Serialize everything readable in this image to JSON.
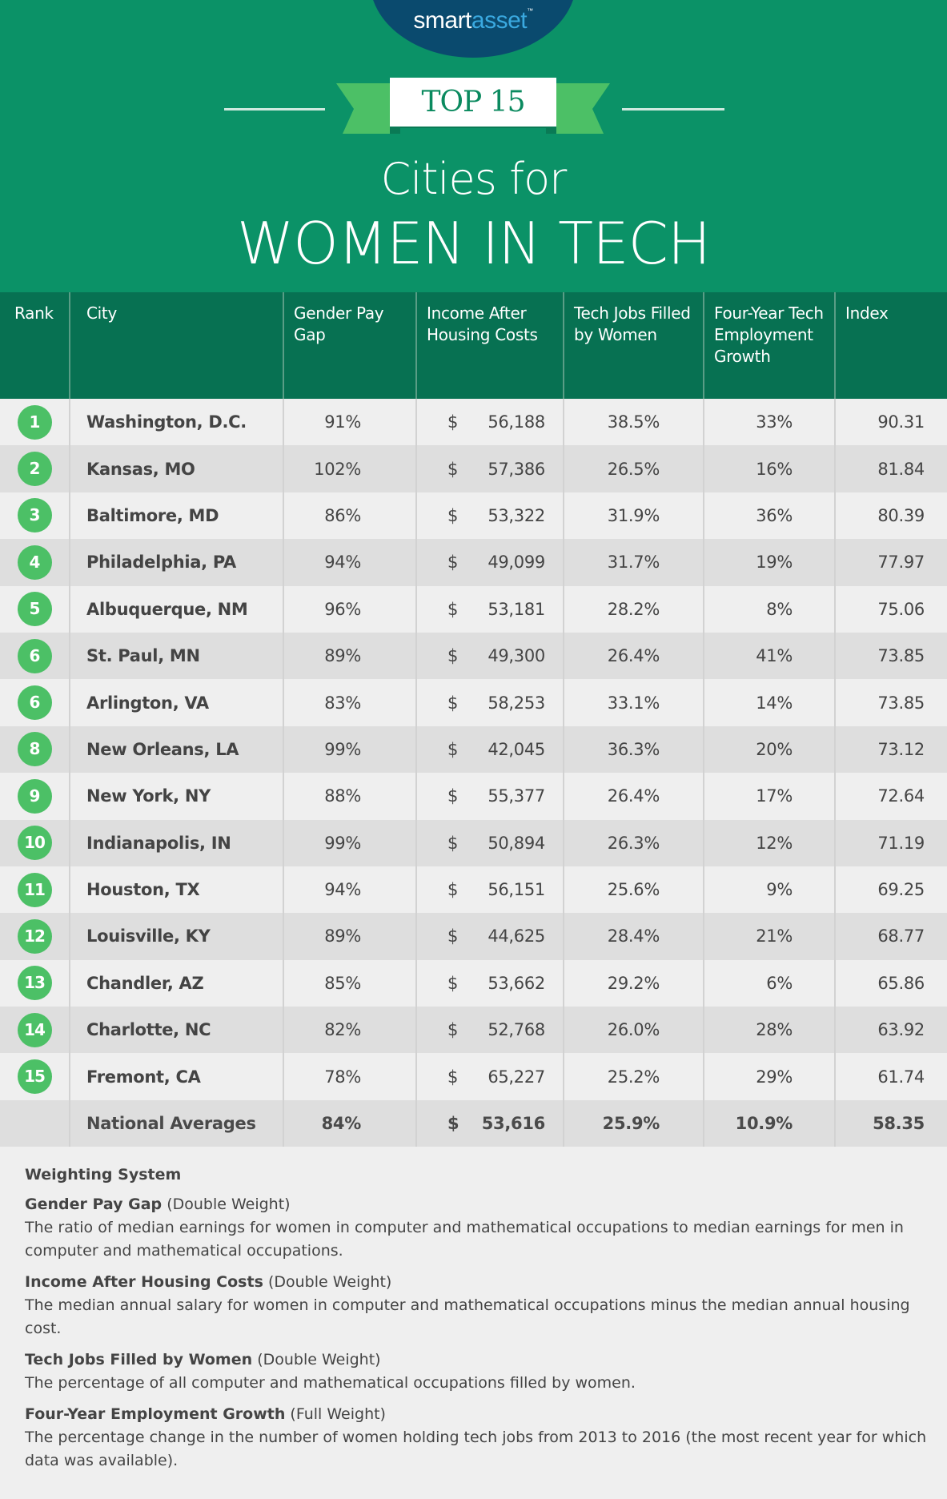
{
  "brand": {
    "part1": "smart",
    "part2": "asset",
    "tm": "™"
  },
  "badge_label": "TOP 15",
  "title_line1": "Cities for",
  "title_line2": "WOMEN IN TECH",
  "colors": {
    "banner": "#0b9267",
    "header": "#077152",
    "badge": "#4cc066",
    "logo": "#0a4a6e",
    "ribbon": "#4cc066"
  },
  "table": {
    "headers": [
      "Rank",
      "City",
      "Gender Pay Gap",
      "Income After Housing Costs",
      "Tech Jobs Filled by Women",
      "Four-Year Tech Employment Growth",
      "Index"
    ],
    "rows": [
      {
        "rank": "1",
        "city": "Washington, D.C.",
        "pay_gap": "91%",
        "income": "56,188",
        "tech_jobs": "38.5%",
        "growth": "33%",
        "index": "90.31"
      },
      {
        "rank": "2",
        "city": "Kansas, MO",
        "pay_gap": "102%",
        "income": "57,386",
        "tech_jobs": "26.5%",
        "growth": "16%",
        "index": "81.84"
      },
      {
        "rank": "3",
        "city": "Baltimore, MD",
        "pay_gap": "86%",
        "income": "53,322",
        "tech_jobs": "31.9%",
        "growth": "36%",
        "index": "80.39"
      },
      {
        "rank": "4",
        "city": "Philadelphia, PA",
        "pay_gap": "94%",
        "income": "49,099",
        "tech_jobs": "31.7%",
        "growth": "19%",
        "index": "77.97"
      },
      {
        "rank": "5",
        "city": "Albuquerque, NM",
        "pay_gap": "96%",
        "income": "53,181",
        "tech_jobs": "28.2%",
        "growth": "8%",
        "index": "75.06"
      },
      {
        "rank": "6",
        "city": "St. Paul, MN",
        "pay_gap": "89%",
        "income": "49,300",
        "tech_jobs": "26.4%",
        "growth": "41%",
        "index": "73.85"
      },
      {
        "rank": "6",
        "city": "Arlington, VA",
        "pay_gap": "83%",
        "income": "58,253",
        "tech_jobs": "33.1%",
        "growth": "14%",
        "index": "73.85"
      },
      {
        "rank": "8",
        "city": "New Orleans, LA",
        "pay_gap": "99%",
        "income": "42,045",
        "tech_jobs": "36.3%",
        "growth": "20%",
        "index": "73.12"
      },
      {
        "rank": "9",
        "city": "New York, NY",
        "pay_gap": "88%",
        "income": "55,377",
        "tech_jobs": "26.4%",
        "growth": "17%",
        "index": "72.64"
      },
      {
        "rank": "10",
        "city": "Indianapolis, IN",
        "pay_gap": "99%",
        "income": "50,894",
        "tech_jobs": "26.3%",
        "growth": "12%",
        "index": "71.19"
      },
      {
        "rank": "11",
        "city": "Houston, TX",
        "pay_gap": "94%",
        "income": "56,151",
        "tech_jobs": "25.6%",
        "growth": "9%",
        "index": "69.25"
      },
      {
        "rank": "12",
        "city": "Louisville, KY",
        "pay_gap": "89%",
        "income": "44,625",
        "tech_jobs": "28.4%",
        "growth": "21%",
        "index": "68.77"
      },
      {
        "rank": "13",
        "city": "Chandler, AZ",
        "pay_gap": "85%",
        "income": "53,662",
        "tech_jobs": "29.2%",
        "growth": "6%",
        "index": "65.86"
      },
      {
        "rank": "14",
        "city": "Charlotte, NC",
        "pay_gap": "82%",
        "income": "52,768",
        "tech_jobs": "26.0%",
        "growth": "28%",
        "index": "63.92"
      },
      {
        "rank": "15",
        "city": "Fremont, CA",
        "pay_gap": "78%",
        "income": "65,227",
        "tech_jobs": "25.2%",
        "growth": "29%",
        "index": "61.74"
      }
    ],
    "national": {
      "label": "National Averages",
      "pay_gap": "84%",
      "income": "53,616",
      "tech_jobs": "25.9%",
      "growth": "10.9%",
      "index": "58.35"
    },
    "currency_symbol": "$"
  },
  "weighting": {
    "title": "Weighting System",
    "items": [
      {
        "name": "Gender Pay Gap",
        "weight": "(Double Weight)",
        "description": "The ratio of median earnings for women in computer and mathematical occupations to median earnings for men in computer and mathematical occupations."
      },
      {
        "name": "Income After Housing Costs",
        "weight": "(Double Weight)",
        "description": "The median annual salary for women in computer and mathematical occupations minus the median annual housing cost."
      },
      {
        "name": "Tech Jobs Filled by Women",
        "weight": "(Double Weight)",
        "description": "The percentage of all computer and mathematical occupations filled by women."
      },
      {
        "name": "Four-Year Employment Growth",
        "weight": "(Full Weight)",
        "description": "The percentage change in the number of women holding tech jobs from 2013 to 2016 (the most recent year for which data was available)."
      }
    ]
  }
}
